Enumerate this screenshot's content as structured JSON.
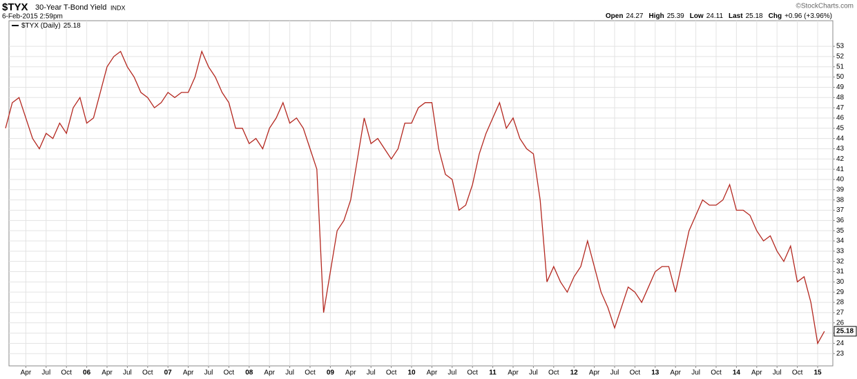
{
  "chart_data": {
    "type": "line",
    "symbol": "$TYX",
    "title": "30-Year T-Bond Yield",
    "exchange": "INDX",
    "timestamp": "6-Feb-2015 2:59pm",
    "source": "©StockCharts.com",
    "quote": [
      {
        "label": "Open",
        "value": 24.27
      },
      {
        "label": "High",
        "value": 25.39
      },
      {
        "label": "Low",
        "value": 24.11
      },
      {
        "label": "Last",
        "value": 25.18
      },
      {
        "label": "Chg",
        "value": 0.96,
        "value_label": "+0.96 (+3.96%)"
      }
    ],
    "last_value": 25.18,
    "categories": [
      null,
      null,
      null,
      "Apr",
      null,
      null,
      "Jul",
      null,
      null,
      "Oct",
      null,
      null,
      "06",
      null,
      null,
      "Apr",
      null,
      null,
      "Jul",
      null,
      null,
      "Oct",
      null,
      null,
      "07",
      null,
      null,
      "Apr",
      null,
      null,
      "Jul",
      null,
      null,
      "Oct",
      null,
      null,
      "08",
      null,
      null,
      "Apr",
      null,
      null,
      "Jul",
      null,
      null,
      "Oct",
      null,
      null,
      "09",
      null,
      null,
      "Apr",
      null,
      null,
      "Jul",
      null,
      null,
      "Oct",
      null,
      null,
      "10",
      null,
      null,
      "Apr",
      null,
      null,
      "Jul",
      null,
      null,
      "Oct",
      null,
      null,
      "11",
      null,
      null,
      "Apr",
      null,
      null,
      "Jul",
      null,
      null,
      "Oct",
      null,
      null,
      "12",
      null,
      null,
      "Apr",
      null,
      null,
      "Jul",
      null,
      null,
      "Oct",
      null,
      null,
      "13",
      null,
      null,
      "Apr",
      null,
      null,
      "Jul",
      null,
      null,
      "Oct",
      null,
      null,
      "14",
      null,
      null,
      "Apr",
      null,
      null,
      "Jul",
      null,
      null,
      "Oct",
      null,
      null,
      "15",
      null
    ],
    "series": [
      {
        "name": "$TYX (Daily)",
        "color": "#b3261e",
        "values": [
          45,
          47.5,
          48,
          46,
          44,
          43,
          44.5,
          44,
          45.5,
          44.5,
          47,
          48,
          45.5,
          46,
          48.5,
          51,
          52,
          52.5,
          51,
          50,
          48.5,
          48,
          47,
          47.5,
          48.5,
          48,
          48.5,
          48.5,
          50,
          52.5,
          51,
          50,
          48.5,
          47.5,
          45,
          45,
          43.5,
          44,
          43,
          45,
          46,
          47.5,
          45.5,
          46,
          45,
          43,
          41,
          27,
          31,
          35,
          36,
          38,
          42,
          46,
          43.5,
          44,
          43,
          42,
          43,
          45.5,
          45.5,
          47,
          47.5,
          47.5,
          43,
          40.5,
          40,
          37,
          37.5,
          39.5,
          42.5,
          44.5,
          46,
          47.5,
          45,
          46,
          44,
          43,
          42.5,
          38,
          30,
          31.5,
          30,
          29,
          30.5,
          31.5,
          34,
          31.5,
          29,
          27.5,
          25.5,
          27.5,
          29.5,
          29,
          28,
          29.5,
          31,
          31.5,
          31.5,
          29,
          32,
          35,
          36.5,
          38,
          37.5,
          37.5,
          38,
          39.5,
          37,
          37,
          36.5,
          35,
          34,
          34.5,
          33,
          32,
          33.5,
          30,
          30.5,
          28,
          24,
          25.18
        ]
      }
    ],
    "ylim": [
      21.8,
      55.5
    ],
    "yticks": [
      23,
      24,
      25,
      26,
      27,
      28,
      29,
      30,
      31,
      32,
      33,
      34,
      35,
      36,
      37,
      38,
      39,
      40,
      41,
      42,
      43,
      44,
      45,
      46,
      47,
      48,
      49,
      50,
      51,
      52,
      53
    ],
    "grid": true
  }
}
